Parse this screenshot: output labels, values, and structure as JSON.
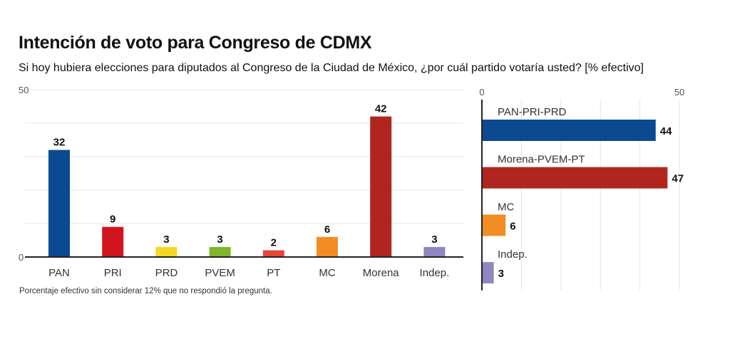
{
  "title": "Intención de voto para Congreso de CDMX",
  "subtitle": "Si hoy hubiera elecciones para diputados al Congreso de la Ciudad de México, ¿por cuál partido votaría usted? [% efectivo]",
  "note": "Porcentaje efectivo sin considerar 12% que no respondió la pregunta.",
  "chart_data": [
    {
      "type": "bar",
      "orientation": "vertical",
      "categories": [
        "PAN",
        "PRI",
        "PRD",
        "PVEM",
        "PT",
        "MC",
        "Morena",
        "Indep."
      ],
      "values": [
        32,
        9,
        3,
        3,
        2,
        6,
        42,
        3
      ],
      "colors": [
        "#0b4a91",
        "#d2141e",
        "#f5d823",
        "#7fb62e",
        "#e8453a",
        "#f18d22",
        "#b0261e",
        "#8f86c2"
      ],
      "ylim": [
        0,
        50
      ],
      "yticks": [
        0,
        50
      ],
      "grid": true
    },
    {
      "type": "bar",
      "orientation": "horizontal",
      "categories": [
        "PAN-PRI-PRD",
        "Morena-PVEM-PT",
        "MC",
        "Indep."
      ],
      "values": [
        44,
        47,
        6,
        3
      ],
      "colors": [
        "#0b4a91",
        "#b0261e",
        "#f18d22",
        "#8f86c2"
      ],
      "xlim": [
        0,
        50
      ],
      "xticks": [
        0,
        50
      ],
      "grid": true
    }
  ]
}
